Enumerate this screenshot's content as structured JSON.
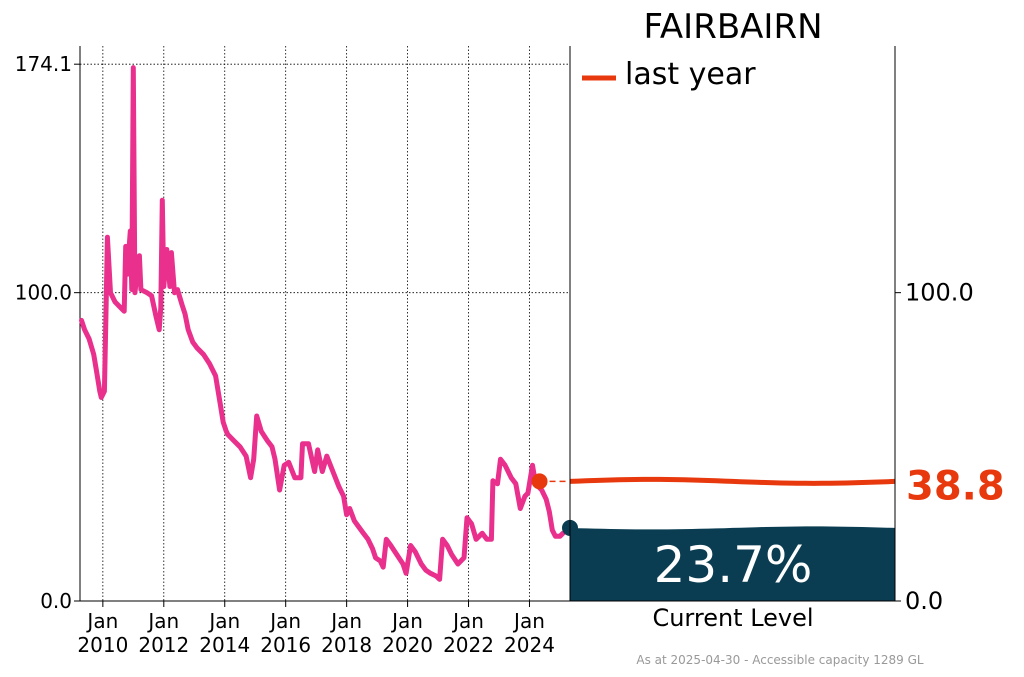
{
  "title": "FAIRBAIRN",
  "legend": {
    "label": "last year"
  },
  "current_level": {
    "percent_text": "23.7%",
    "label": "Current Level",
    "percent": 23.7
  },
  "last_year_value_text": "38.8",
  "footnote": "As at 2025-04-30 - Accessible capacity 1289 GL",
  "colors": {
    "series": "#e8308c",
    "last_year": "#e8380d",
    "current_fill": "#0b3d52",
    "grid": "#000000"
  },
  "chart_data": {
    "type": "line",
    "title": "FAIRBAIRN",
    "ylim": [
      0,
      180
    ],
    "xlim": [
      2009.25,
      2025.33
    ],
    "y_ticks": [
      0.0,
      100.0,
      174.1
    ],
    "y_tick_labels": [
      "0.0",
      "100.0",
      "174.1"
    ],
    "right_y_ticks": [
      0.0,
      100.0
    ],
    "right_y_tick_labels": [
      "0.0",
      "100.0"
    ],
    "x_ticks": [
      2010,
      2012,
      2014,
      2016,
      2018,
      2020,
      2022,
      2024
    ],
    "x_tick_labels": [
      [
        "Jan",
        "2010"
      ],
      [
        "Jan",
        "2012"
      ],
      [
        "Jan",
        "2014"
      ],
      [
        "Jan",
        "2016"
      ],
      [
        "Jan",
        "2018"
      ],
      [
        "Jan",
        "2020"
      ],
      [
        "Jan",
        "2022"
      ],
      [
        "Jan",
        "2024"
      ]
    ],
    "grid": true,
    "series": [
      {
        "points": [
          [
            2009.3,
            91
          ],
          [
            2009.4,
            88
          ],
          [
            2009.55,
            85
          ],
          [
            2009.7,
            80
          ],
          [
            2009.8,
            74
          ],
          [
            2009.9,
            68
          ],
          [
            2009.95,
            66
          ],
          [
            2010.05,
            68
          ],
          [
            2010.1,
            92
          ],
          [
            2010.15,
            118
          ],
          [
            2010.25,
            100
          ],
          [
            2010.4,
            97
          ],
          [
            2010.6,
            95
          ],
          [
            2010.7,
            94
          ],
          [
            2010.75,
            115
          ],
          [
            2010.8,
            106
          ],
          [
            2010.9,
            120
          ],
          [
            2010.95,
            101
          ],
          [
            2011.0,
            173
          ],
          [
            2011.05,
            100
          ],
          [
            2011.2,
            112
          ],
          [
            2011.25,
            101
          ],
          [
            2011.45,
            100
          ],
          [
            2011.6,
            99
          ],
          [
            2011.75,
            92
          ],
          [
            2011.85,
            88
          ],
          [
            2011.9,
            95
          ],
          [
            2011.95,
            130
          ],
          [
            2012.0,
            102
          ],
          [
            2012.1,
            114
          ],
          [
            2012.2,
            102
          ],
          [
            2012.25,
            113
          ],
          [
            2012.35,
            100
          ],
          [
            2012.45,
            101
          ],
          [
            2012.6,
            96
          ],
          [
            2012.7,
            93
          ],
          [
            2012.8,
            88
          ],
          [
            2012.95,
            84
          ],
          [
            2013.1,
            82
          ],
          [
            2013.3,
            80
          ],
          [
            2013.5,
            77
          ],
          [
            2013.7,
            73
          ],
          [
            2013.85,
            64
          ],
          [
            2013.95,
            58
          ],
          [
            2014.05,
            55
          ],
          [
            2014.1,
            54
          ],
          [
            2014.3,
            52
          ],
          [
            2014.5,
            50
          ],
          [
            2014.7,
            47
          ],
          [
            2014.85,
            40
          ],
          [
            2014.95,
            46
          ],
          [
            2015.05,
            60
          ],
          [
            2015.2,
            55
          ],
          [
            2015.4,
            52
          ],
          [
            2015.55,
            50
          ],
          [
            2015.65,
            46
          ],
          [
            2015.8,
            36
          ],
          [
            2015.95,
            44
          ],
          [
            2016.1,
            45
          ],
          [
            2016.3,
            40
          ],
          [
            2016.5,
            40
          ],
          [
            2016.55,
            51
          ],
          [
            2016.75,
            51
          ],
          [
            2016.95,
            42
          ],
          [
            2017.05,
            49
          ],
          [
            2017.2,
            42
          ],
          [
            2017.35,
            47
          ],
          [
            2017.55,
            42
          ],
          [
            2017.75,
            37
          ],
          [
            2017.9,
            34
          ],
          [
            2018.0,
            28
          ],
          [
            2018.1,
            30
          ],
          [
            2018.25,
            26
          ],
          [
            2018.4,
            24
          ],
          [
            2018.55,
            22
          ],
          [
            2018.7,
            20
          ],
          [
            2018.85,
            17
          ],
          [
            2018.95,
            14
          ],
          [
            2019.1,
            13
          ],
          [
            2019.2,
            11
          ],
          [
            2019.3,
            20
          ],
          [
            2019.45,
            18
          ],
          [
            2019.65,
            15
          ],
          [
            2019.85,
            12
          ],
          [
            2019.95,
            9
          ],
          [
            2020.1,
            18
          ],
          [
            2020.25,
            16
          ],
          [
            2020.45,
            12
          ],
          [
            2020.6,
            10
          ],
          [
            2020.75,
            9
          ],
          [
            2020.95,
            8
          ],
          [
            2021.05,
            7
          ],
          [
            2021.15,
            20
          ],
          [
            2021.3,
            18
          ],
          [
            2021.45,
            15
          ],
          [
            2021.65,
            12
          ],
          [
            2021.85,
            14
          ],
          [
            2021.95,
            27
          ],
          [
            2022.1,
            25
          ],
          [
            2022.25,
            20
          ],
          [
            2022.35,
            21
          ],
          [
            2022.45,
            22
          ],
          [
            2022.6,
            20
          ],
          [
            2022.75,
            20
          ],
          [
            2022.8,
            39
          ],
          [
            2022.95,
            38
          ],
          [
            2023.05,
            46
          ],
          [
            2023.2,
            44
          ],
          [
            2023.4,
            40
          ],
          [
            2023.55,
            38
          ],
          [
            2023.7,
            30
          ],
          [
            2023.85,
            34
          ],
          [
            2023.95,
            35
          ],
          [
            2024.1,
            44
          ],
          [
            2024.2,
            38
          ],
          [
            2024.4,
            36
          ],
          [
            2024.55,
            33
          ],
          [
            2024.65,
            29
          ],
          [
            2024.75,
            23
          ],
          [
            2024.85,
            21
          ],
          [
            2025.0,
            21
          ],
          [
            2025.1,
            22
          ]
        ]
      }
    ],
    "last_year_marker": {
      "x": 2024.33,
      "y": 38.8
    },
    "current_marker": {
      "x": 2025.33,
      "y": 23.7
    }
  }
}
